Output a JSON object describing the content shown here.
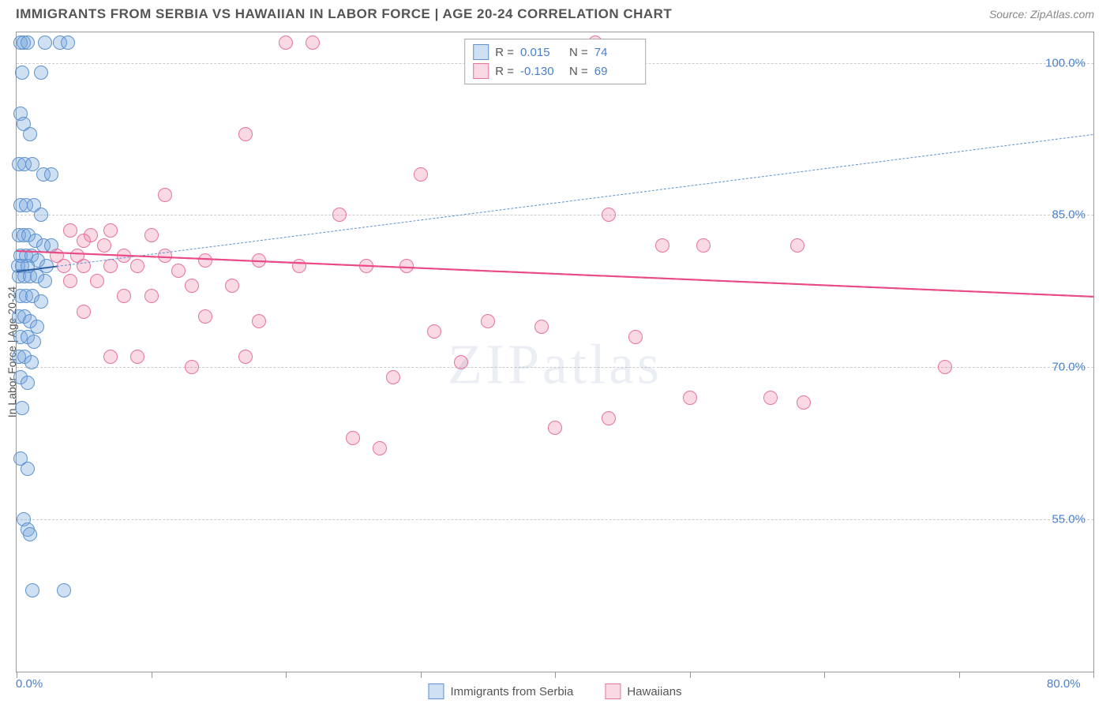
{
  "title": "IMMIGRANTS FROM SERBIA VS HAWAIIAN IN LABOR FORCE | AGE 20-24 CORRELATION CHART",
  "source": "Source: ZipAtlas.com",
  "watermark": "ZIPatlas",
  "chart": {
    "type": "scatter",
    "ylabel": "In Labor Force | Age 20-24",
    "xlim": [
      0,
      80
    ],
    "ylim": [
      40,
      103
    ],
    "xticks": [
      0,
      10,
      20,
      30,
      40,
      50,
      60,
      70,
      80
    ],
    "xtick_labels_shown": {
      "0": "0.0%",
      "80": "80.0%"
    },
    "yticks": [
      55,
      70,
      85,
      100
    ],
    "ytick_labels": [
      "55.0%",
      "70.0%",
      "85.0%",
      "100.0%"
    ],
    "background": "#ffffff",
    "border_color": "#999999",
    "grid_color": "#cccccc",
    "axis_label_color": "#4a7fc9",
    "marker_radius": 9,
    "series": [
      {
        "id": "serbia",
        "label": "Immigrants from Serbia",
        "color_fill": "rgba(120,165,220,0.35)",
        "color_stroke": "#5d92cf",
        "r": "0.015",
        "n": "74",
        "trend": {
          "x1": 0,
          "y1": 79.5,
          "x2": 80,
          "y2": 93,
          "solid_until_x": 3,
          "stroke": "#2b5fa5",
          "dash_stroke": "#5d92cf",
          "width": 2.5
        },
        "points": [
          [
            0.3,
            102
          ],
          [
            0.5,
            102
          ],
          [
            0.8,
            102
          ],
          [
            2.1,
            102
          ],
          [
            3.2,
            102
          ],
          [
            3.8,
            102
          ],
          [
            1.8,
            99
          ],
          [
            0.4,
            99
          ],
          [
            0.3,
            95
          ],
          [
            0.5,
            94
          ],
          [
            1.0,
            93
          ],
          [
            0.2,
            90
          ],
          [
            0.6,
            90
          ],
          [
            1.2,
            90
          ],
          [
            2.0,
            89
          ],
          [
            2.6,
            89
          ],
          [
            0.3,
            86
          ],
          [
            0.7,
            86
          ],
          [
            1.3,
            86
          ],
          [
            1.8,
            85
          ],
          [
            0.2,
            83
          ],
          [
            0.5,
            83
          ],
          [
            0.9,
            83
          ],
          [
            1.4,
            82.5
          ],
          [
            2.0,
            82
          ],
          [
            2.6,
            82
          ],
          [
            0.3,
            81
          ],
          [
            0.7,
            81
          ],
          [
            1.1,
            81
          ],
          [
            1.6,
            80.5
          ],
          [
            2.2,
            80
          ],
          [
            0.1,
            80
          ],
          [
            0.4,
            80
          ],
          [
            0.8,
            80
          ],
          [
            0.2,
            79
          ],
          [
            0.6,
            79
          ],
          [
            1.0,
            79
          ],
          [
            1.5,
            79
          ],
          [
            2.1,
            78.5
          ],
          [
            0.3,
            77
          ],
          [
            0.7,
            77
          ],
          [
            1.2,
            77
          ],
          [
            1.8,
            76.5
          ],
          [
            0.2,
            75
          ],
          [
            0.6,
            75
          ],
          [
            1.0,
            74.5
          ],
          [
            1.5,
            74
          ],
          [
            0.3,
            73
          ],
          [
            0.8,
            73
          ],
          [
            1.3,
            72.5
          ],
          [
            0.2,
            71
          ],
          [
            0.6,
            71
          ],
          [
            1.1,
            70.5
          ],
          [
            0.3,
            69
          ],
          [
            0.8,
            68.5
          ],
          [
            0.4,
            66
          ],
          [
            0.3,
            61
          ],
          [
            0.8,
            60
          ],
          [
            0.5,
            55
          ],
          [
            0.8,
            54
          ],
          [
            1.0,
            53.5
          ],
          [
            1.2,
            48
          ],
          [
            3.5,
            48
          ]
        ]
      },
      {
        "id": "hawaiian",
        "label": "Hawaiians",
        "color_fill": "rgba(235,130,165,0.30)",
        "color_stroke": "#e6739f",
        "r": "-0.130",
        "n": "69",
        "trend": {
          "x1": 0,
          "y1": 81.5,
          "x2": 80,
          "y2": 77,
          "solid_until_x": 80,
          "stroke": "#e94b86",
          "dash_stroke": "#e94b86",
          "width": 2.5
        },
        "points": [
          [
            20,
            102
          ],
          [
            22,
            102
          ],
          [
            43,
            102
          ],
          [
            17,
            93
          ],
          [
            30,
            89
          ],
          [
            11,
            87
          ],
          [
            24,
            85
          ],
          [
            44,
            85
          ],
          [
            4,
            83.5
          ],
          [
            5.5,
            83
          ],
          [
            7,
            83.5
          ],
          [
            10,
            83
          ],
          [
            5,
            82.5
          ],
          [
            6.5,
            82
          ],
          [
            48,
            82
          ],
          [
            51,
            82
          ],
          [
            58,
            82
          ],
          [
            3,
            81
          ],
          [
            4.5,
            81
          ],
          [
            8,
            81
          ],
          [
            11,
            81
          ],
          [
            14,
            80.5
          ],
          [
            18,
            80.5
          ],
          [
            3.5,
            80
          ],
          [
            5,
            80
          ],
          [
            7,
            80
          ],
          [
            9,
            80
          ],
          [
            12,
            79.5
          ],
          [
            21,
            80
          ],
          [
            26,
            80
          ],
          [
            29,
            80
          ],
          [
            4,
            78.5
          ],
          [
            6,
            78.5
          ],
          [
            13,
            78
          ],
          [
            16,
            78
          ],
          [
            8,
            77
          ],
          [
            10,
            77
          ],
          [
            5,
            75.5
          ],
          [
            14,
            75
          ],
          [
            18,
            74.5
          ],
          [
            35,
            74.5
          ],
          [
            39,
            74
          ],
          [
            31,
            73.5
          ],
          [
            46,
            73
          ],
          [
            7,
            71
          ],
          [
            9,
            71
          ],
          [
            17,
            71
          ],
          [
            33,
            70.5
          ],
          [
            69,
            70
          ],
          [
            13,
            70
          ],
          [
            28,
            69
          ],
          [
            50,
            67
          ],
          [
            56,
            67
          ],
          [
            58.5,
            66.5
          ],
          [
            44,
            65
          ],
          [
            40,
            64
          ],
          [
            25,
            63
          ],
          [
            27,
            62
          ]
        ]
      }
    ]
  },
  "legend_bottom": [
    {
      "swatch_fill": "rgba(120,165,220,0.35)",
      "swatch_stroke": "#5d92cf",
      "label": "Immigrants from Serbia"
    },
    {
      "swatch_fill": "rgba(235,130,165,0.30)",
      "swatch_stroke": "#e6739f",
      "label": "Hawaiians"
    }
  ]
}
